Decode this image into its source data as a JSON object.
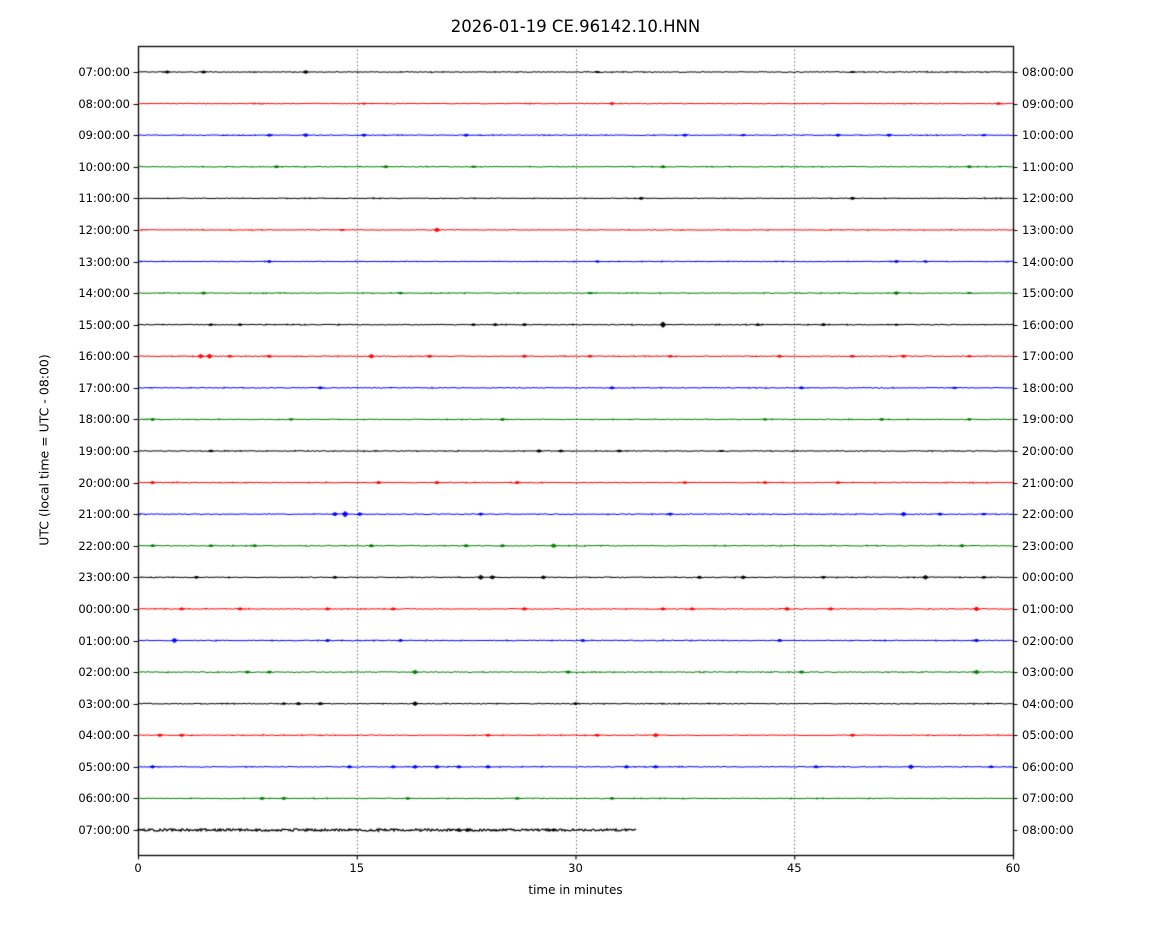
{
  "figure": {
    "title": "2026-01-19 CE.96142.10.HNN"
  },
  "chart_data": {
    "type": "line",
    "variant": "helicorder_dayplot",
    "title": "2026-01-19 CE.96142.10.HNN",
    "xlabel": "time in minutes",
    "ylabel": "UTC (local time = UTC - 08:00)",
    "xlim": [
      0,
      60
    ],
    "xticks": [
      0,
      15,
      30,
      45,
      60
    ],
    "grid": {
      "vertical_dotted_at_minutes": [
        15,
        30,
        45
      ]
    },
    "color_cycle": [
      "#000000",
      "#ff0000",
      "#0000ff",
      "#008000"
    ],
    "interval_minutes": 60,
    "rows": [
      {
        "left": "07:00:00",
        "right": "08:00:00",
        "color": "#000000",
        "start": 0,
        "end": 60,
        "noise": 0.8,
        "events": [
          [
            2,
            1.5
          ],
          [
            4.5,
            1.5
          ],
          [
            11.5,
            1.8
          ],
          [
            31.5,
            1.2
          ],
          [
            49,
            1.0
          ]
        ]
      },
      {
        "left": "08:00:00",
        "right": "09:00:00",
        "color": "#ff0000",
        "start": 0,
        "end": 60,
        "noise": 0.8,
        "events": [
          [
            15.5,
            1.0
          ],
          [
            32.5,
            1.5
          ],
          [
            59,
            1.3
          ]
        ]
      },
      {
        "left": "09:00:00",
        "right": "10:00:00",
        "color": "#0000ff",
        "start": 0,
        "end": 60,
        "noise": 0.8,
        "events": [
          [
            9,
            1.5
          ],
          [
            11.5,
            1.8
          ],
          [
            15.5,
            1.5
          ],
          [
            22.5,
            1.5
          ],
          [
            37.5,
            1.5
          ],
          [
            41.5,
            1.2
          ],
          [
            48,
            1.5
          ],
          [
            51.5,
            1.5
          ],
          [
            58,
            1.2
          ]
        ]
      },
      {
        "left": "10:00:00",
        "right": "11:00:00",
        "color": "#008000",
        "start": 0,
        "end": 60,
        "noise": 0.8,
        "events": [
          [
            9.5,
            1.5
          ],
          [
            17,
            1.5
          ],
          [
            23,
            1.2
          ],
          [
            36,
            1.5
          ],
          [
            57,
            1.5
          ]
        ]
      },
      {
        "left": "11:00:00",
        "right": "12:00:00",
        "color": "#000000",
        "start": 0,
        "end": 60,
        "noise": 0.7,
        "events": [
          [
            34.5,
            1.5
          ],
          [
            49,
            1.5
          ]
        ]
      },
      {
        "left": "12:00:00",
        "right": "13:00:00",
        "color": "#ff0000",
        "start": 0,
        "end": 60,
        "noise": 0.7,
        "events": [
          [
            14,
            1.0
          ],
          [
            20.5,
            2.2
          ]
        ]
      },
      {
        "left": "13:00:00",
        "right": "14:00:00",
        "color": "#0000ff",
        "start": 0,
        "end": 60,
        "noise": 0.7,
        "events": [
          [
            9,
            1.5
          ],
          [
            31.5,
            1.2
          ],
          [
            52,
            1.5
          ],
          [
            54,
            1.2
          ]
        ]
      },
      {
        "left": "14:00:00",
        "right": "15:00:00",
        "color": "#008000",
        "start": 0,
        "end": 60,
        "noise": 0.8,
        "events": [
          [
            4.5,
            1.5
          ],
          [
            18,
            1.3
          ],
          [
            31,
            1.2
          ],
          [
            52,
            1.8
          ],
          [
            57,
            1.0
          ]
        ]
      },
      {
        "left": "15:00:00",
        "right": "16:00:00",
        "color": "#000000",
        "start": 0,
        "end": 60,
        "noise": 0.9,
        "events": [
          [
            5,
            1.3
          ],
          [
            7,
            1.3
          ],
          [
            23,
            1.3
          ],
          [
            24.5,
            1.5
          ],
          [
            26.5,
            1.5
          ],
          [
            36,
            3.0
          ],
          [
            42.5,
            1.3
          ],
          [
            47,
            1.5
          ],
          [
            52,
            1.0
          ]
        ]
      },
      {
        "left": "16:00:00",
        "right": "17:00:00",
        "color": "#ff0000",
        "start": 0,
        "end": 60,
        "noise": 0.9,
        "events": [
          [
            4.3,
            2.2
          ],
          [
            4.9,
            2.4
          ],
          [
            6.3,
            1.4
          ],
          [
            9,
            1.5
          ],
          [
            16,
            2.2
          ],
          [
            20,
            1.5
          ],
          [
            26.5,
            1.5
          ],
          [
            31,
            1.3
          ],
          [
            36.5,
            1.3
          ],
          [
            44,
            1.5
          ],
          [
            49,
            1.3
          ],
          [
            52.5,
            1.5
          ],
          [
            57,
            1.2
          ]
        ]
      },
      {
        "left": "17:00:00",
        "right": "18:00:00",
        "color": "#0000ff",
        "start": 0,
        "end": 60,
        "noise": 0.8,
        "events": [
          [
            12.5,
            1.5
          ],
          [
            32.5,
            1.5
          ],
          [
            45.5,
            1.5
          ],
          [
            56,
            1.2
          ]
        ]
      },
      {
        "left": "18:00:00",
        "right": "19:00:00",
        "color": "#008000",
        "start": 0,
        "end": 60,
        "noise": 0.8,
        "events": [
          [
            1,
            1.5
          ],
          [
            10.5,
            1.3
          ],
          [
            25,
            1.5
          ],
          [
            43,
            1.2
          ],
          [
            51,
            1.5
          ],
          [
            57,
            1.3
          ]
        ]
      },
      {
        "left": "19:00:00",
        "right": "20:00:00",
        "color": "#000000",
        "start": 0,
        "end": 60,
        "noise": 0.8,
        "events": [
          [
            5,
            1.3
          ],
          [
            27.5,
            1.6
          ],
          [
            29,
            1.4
          ],
          [
            33,
            1.4
          ],
          [
            40,
            1.0
          ]
        ]
      },
      {
        "left": "20:00:00",
        "right": "21:00:00",
        "color": "#ff0000",
        "start": 0,
        "end": 60,
        "noise": 0.8,
        "events": [
          [
            1,
            1.5
          ],
          [
            16.5,
            1.5
          ],
          [
            20.5,
            1.5
          ],
          [
            26,
            1.5
          ],
          [
            37.5,
            1.3
          ],
          [
            43,
            1.3
          ],
          [
            48,
            1.3
          ]
        ]
      },
      {
        "left": "21:00:00",
        "right": "22:00:00",
        "color": "#0000ff",
        "start": 0,
        "end": 60,
        "noise": 0.9,
        "events": [
          [
            13.5,
            2.0
          ],
          [
            14.2,
            3.0
          ],
          [
            15.2,
            1.8
          ],
          [
            23.5,
            1.5
          ],
          [
            36.5,
            1.5
          ],
          [
            52.5,
            2.2
          ],
          [
            55,
            1.5
          ],
          [
            58,
            1.3
          ]
        ]
      },
      {
        "left": "22:00:00",
        "right": "23:00:00",
        "color": "#008000",
        "start": 0,
        "end": 60,
        "noise": 0.9,
        "events": [
          [
            1,
            1.4
          ],
          [
            5,
            1.4
          ],
          [
            8,
            1.5
          ],
          [
            16,
            1.6
          ],
          [
            22.5,
            1.6
          ],
          [
            25,
            1.5
          ],
          [
            28.5,
            2.2
          ],
          [
            56.5,
            1.6
          ]
        ]
      },
      {
        "left": "23:00:00",
        "right": "00:00:00",
        "color": "#000000",
        "start": 0,
        "end": 60,
        "noise": 0.9,
        "events": [
          [
            4,
            1.4
          ],
          [
            13.5,
            1.4
          ],
          [
            23.5,
            2.4
          ],
          [
            24.3,
            2.0
          ],
          [
            27.8,
            1.8
          ],
          [
            38.5,
            1.6
          ],
          [
            41.5,
            1.8
          ],
          [
            47,
            1.4
          ],
          [
            54,
            2.2
          ],
          [
            58,
            1.4
          ]
        ]
      },
      {
        "left": "00:00:00",
        "right": "01:00:00",
        "color": "#ff0000",
        "start": 0,
        "end": 60,
        "noise": 0.9,
        "events": [
          [
            3,
            1.5
          ],
          [
            7,
            1.5
          ],
          [
            13,
            1.5
          ],
          [
            17.5,
            1.5
          ],
          [
            26.5,
            1.6
          ],
          [
            36,
            1.5
          ],
          [
            38,
            1.5
          ],
          [
            44.5,
            1.8
          ],
          [
            47.5,
            1.6
          ],
          [
            57.5,
            2.2
          ]
        ]
      },
      {
        "left": "01:00:00",
        "right": "02:00:00",
        "color": "#0000ff",
        "start": 0,
        "end": 60,
        "noise": 0.9,
        "events": [
          [
            2.5,
            2.4
          ],
          [
            13,
            1.5
          ],
          [
            18,
            1.4
          ],
          [
            30.5,
            1.5
          ],
          [
            44,
            1.6
          ],
          [
            57.5,
            1.6
          ]
        ]
      },
      {
        "left": "02:00:00",
        "right": "03:00:00",
        "color": "#008000",
        "start": 0,
        "end": 60,
        "noise": 0.9,
        "events": [
          [
            7.5,
            1.5
          ],
          [
            9,
            1.5
          ],
          [
            19,
            2.2
          ],
          [
            29.5,
            1.6
          ],
          [
            45.5,
            1.6
          ],
          [
            57.5,
            2.2
          ]
        ]
      },
      {
        "left": "03:00:00",
        "right": "04:00:00",
        "color": "#000000",
        "start": 0,
        "end": 60,
        "noise": 0.9,
        "events": [
          [
            10,
            1.3
          ],
          [
            11,
            1.6
          ],
          [
            12.5,
            1.6
          ],
          [
            19,
            2.2
          ],
          [
            30,
            1.4
          ]
        ]
      },
      {
        "left": "04:00:00",
        "right": "05:00:00",
        "color": "#ff0000",
        "start": 0,
        "end": 60,
        "noise": 0.8,
        "events": [
          [
            1.5,
            1.6
          ],
          [
            3,
            1.6
          ],
          [
            24,
            1.4
          ],
          [
            31.5,
            1.4
          ],
          [
            35.5,
            2.0
          ],
          [
            49,
            1.5
          ]
        ]
      },
      {
        "left": "05:00:00",
        "right": "06:00:00",
        "color": "#0000ff",
        "start": 0,
        "end": 60,
        "noise": 0.9,
        "events": [
          [
            1,
            1.6
          ],
          [
            14.5,
            1.6
          ],
          [
            17.5,
            1.6
          ],
          [
            19,
            1.8
          ],
          [
            20.5,
            1.8
          ],
          [
            22,
            1.6
          ],
          [
            24,
            1.6
          ],
          [
            33.5,
            1.6
          ],
          [
            35.5,
            1.6
          ],
          [
            46.5,
            1.5
          ],
          [
            53,
            2.2
          ],
          [
            58.5,
            1.4
          ]
        ]
      },
      {
        "left": "06:00:00",
        "right": "07:00:00",
        "color": "#008000",
        "start": 0,
        "end": 60,
        "noise": 0.8,
        "events": [
          [
            8.5,
            1.6
          ],
          [
            10,
            1.6
          ],
          [
            18.5,
            1.4
          ],
          [
            26,
            1.4
          ],
          [
            32.5,
            1.4
          ]
        ]
      },
      {
        "left": "07:00:00",
        "right": "08:00:00",
        "color": "#000000",
        "start": 0,
        "end": 34.2,
        "noise": 2.4,
        "events": [
          [
            22,
            1.8
          ],
          [
            22.6,
            1.8
          ],
          [
            28.5,
            1.6
          ]
        ]
      }
    ]
  }
}
